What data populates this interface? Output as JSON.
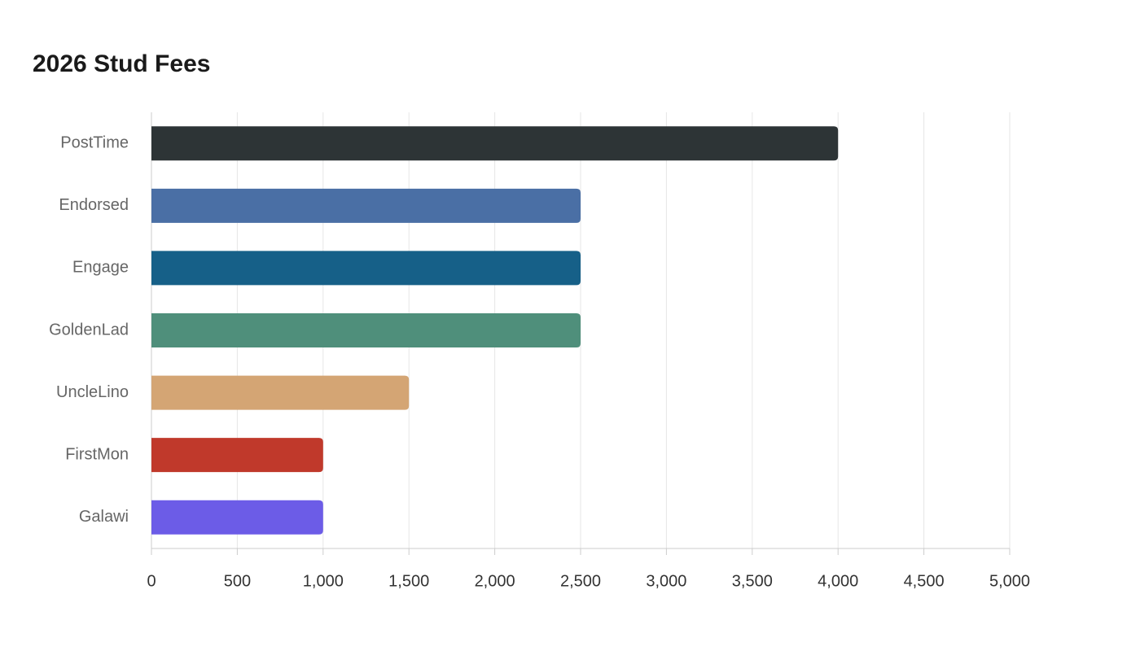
{
  "chart_data": {
    "type": "bar",
    "orientation": "horizontal",
    "title": "2026 Stud Fees",
    "categories": [
      "PostTime",
      "Endorsed",
      "Engage",
      "GoldenLad",
      "UncleLino",
      "FirstMon",
      "Galawi"
    ],
    "values": [
      4000,
      2500,
      2500,
      2500,
      1500,
      1000,
      1000
    ],
    "colors": [
      "#2d3436",
      "#4a6fa5",
      "#166088",
      "#4f8f7b",
      "#d4a574",
      "#c0392b",
      "#6c5ce7"
    ],
    "xlim": [
      0,
      5000
    ],
    "xticks": [
      0,
      500,
      {
        "value": 1000,
        "label": "1,000"
      },
      {
        "value": 1500,
        "label": "1,500"
      },
      {
        "value": 2000,
        "label": "2,000"
      },
      {
        "value": 2500,
        "label": "2,500"
      },
      {
        "value": 3000,
        "label": "3,000"
      },
      {
        "value": 3500,
        "label": "3,500"
      },
      {
        "value": 4000,
        "label": "4,000"
      },
      {
        "value": 4500,
        "label": "4,500"
      },
      {
        "value": 5000,
        "label": "5,000"
      }
    ],
    "grid": true
  }
}
